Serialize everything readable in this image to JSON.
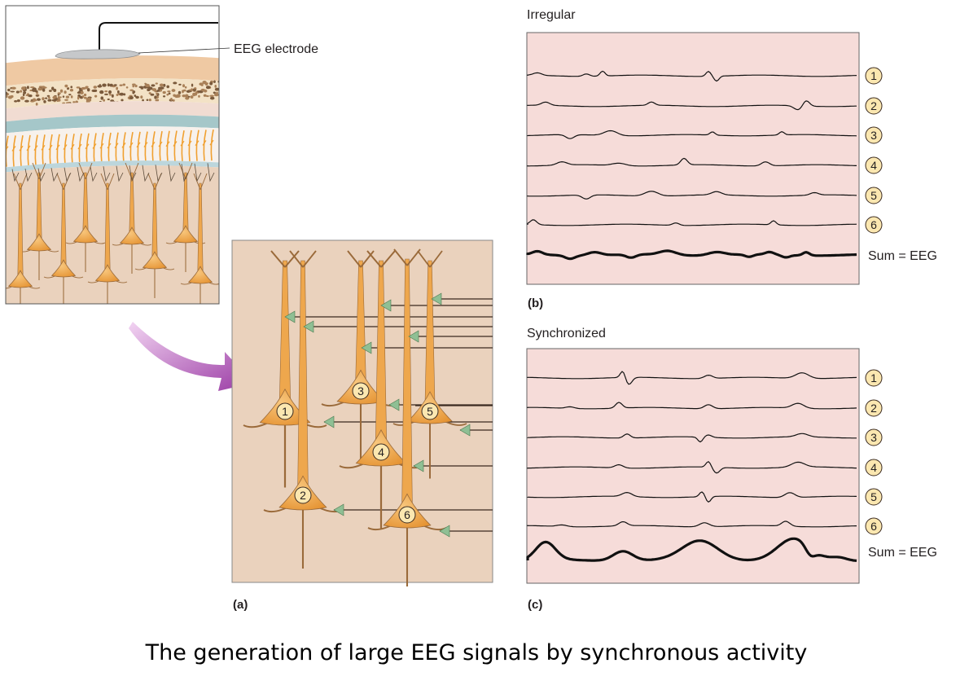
{
  "electrode_label": "EEG electrode",
  "panel_a": {
    "label": "(a)",
    "neurons": [
      "1",
      "2",
      "3",
      "4",
      "5",
      "6"
    ]
  },
  "panel_b": {
    "label": "(b)",
    "title": "Irregular",
    "traces": [
      "1",
      "2",
      "3",
      "4",
      "5",
      "6"
    ],
    "sum_label": "Sum = EEG"
  },
  "panel_c": {
    "label": "(c)",
    "title": "Synchronized",
    "traces": [
      "1",
      "2",
      "3",
      "4",
      "5",
      "6"
    ],
    "sum_label": "Sum = EEG"
  },
  "caption": "The generation of large EEG signals by synchronous activity",
  "colors": {
    "tissue": "#ead2bd",
    "trace_panel": "#f6dcd9",
    "neuron": "#eea74d",
    "synapse": "#8fbf94",
    "arrow": "#a045a8",
    "label_circle": "#fbe7b0"
  }
}
